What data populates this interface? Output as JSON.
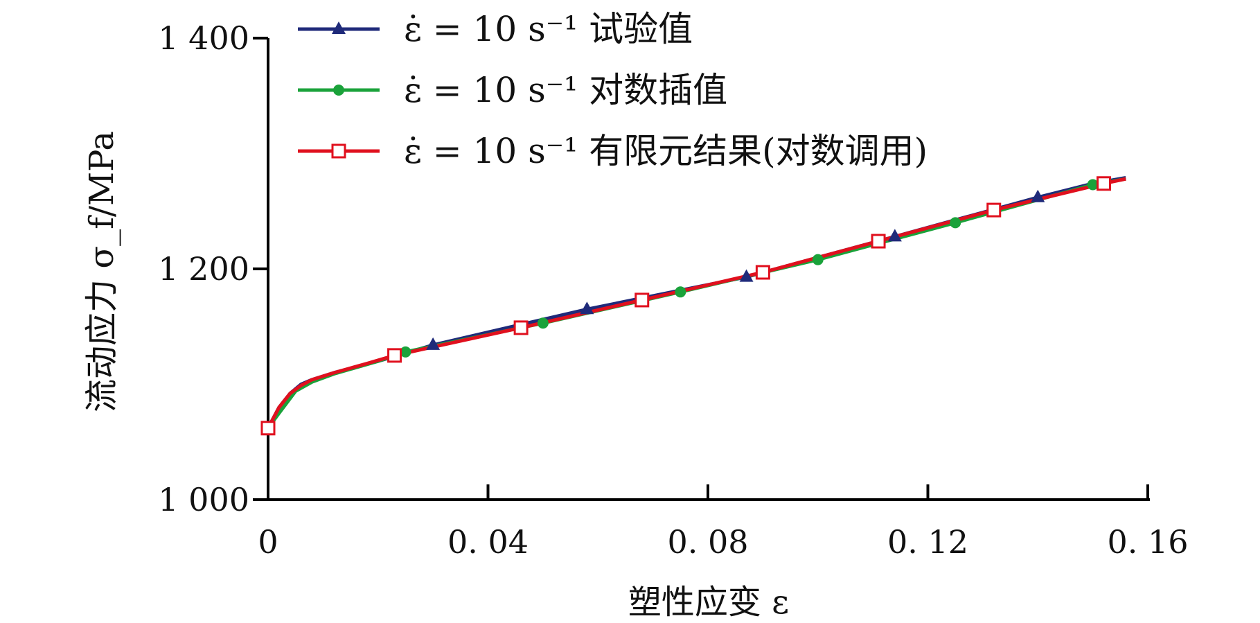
{
  "chart_data": {
    "type": "line",
    "title": "",
    "xlabel": "塑性应变 ε",
    "ylabel": "流动应力 σ_f/MPa",
    "xlim": [
      0,
      0.16
    ],
    "ylim": [
      1000,
      1400
    ],
    "x_ticks": [
      0,
      0.04,
      0.08,
      0.12,
      0.16
    ],
    "x_tick_labels": [
      "0",
      "0. 04",
      "0. 08",
      "0. 12",
      "0. 16"
    ],
    "y_ticks": [
      1000,
      1200,
      1400
    ],
    "y_tick_labels": [
      "1 000",
      "1 200",
      "1 400"
    ],
    "grid": false,
    "legend_position": "top-left",
    "series": [
      {
        "name": "ε̇ = 10 s⁻¹ 试验值",
        "color": "#1f2a7a",
        "marker": "triangle",
        "x": [
          0,
          0.002,
          0.004,
          0.006,
          0.008,
          0.012,
          0.02,
          0.03,
          0.058,
          0.087,
          0.114,
          0.14,
          0.15,
          0.156
        ],
        "y": [
          1062,
          1080,
          1092,
          1100,
          1104,
          1110,
          1120,
          1134,
          1165,
          1193,
          1228,
          1262,
          1274,
          1279
        ],
        "marker_x": [
          0.03,
          0.058,
          0.087,
          0.114,
          0.14
        ],
        "marker_y": [
          1134,
          1165,
          1193,
          1228,
          1262
        ]
      },
      {
        "name": "ε̇ = 10 s⁻¹ 对数插值",
        "color": "#1aa23a",
        "marker": "circle",
        "x": [
          0,
          0.002,
          0.005,
          0.008,
          0.012,
          0.02,
          0.025,
          0.05,
          0.075,
          0.1,
          0.125,
          0.15,
          0.156
        ],
        "y": [
          1062,
          1075,
          1094,
          1102,
          1109,
          1120,
          1128,
          1153,
          1180,
          1208,
          1240,
          1273,
          1278
        ],
        "marker_x": [
          0.025,
          0.05,
          0.075,
          0.1,
          0.125,
          0.15
        ],
        "marker_y": [
          1128,
          1153,
          1180,
          1208,
          1240,
          1273
        ]
      },
      {
        "name": "ε̇ = 10 s⁻¹ 有限元结果(对数调用)",
        "color": "#e0101e",
        "marker": "square-open",
        "x": [
          0,
          0.002,
          0.004,
          0.006,
          0.008,
          0.012,
          0.018,
          0.023,
          0.046,
          0.068,
          0.09,
          0.111,
          0.132,
          0.152,
          0.156
        ],
        "y": [
          1062,
          1080,
          1092,
          1099,
          1104,
          1110,
          1118,
          1125,
          1149,
          1173,
          1197,
          1224,
          1251,
          1274,
          1278
        ],
        "marker_x": [
          0,
          0.023,
          0.046,
          0.068,
          0.09,
          0.111,
          0.132,
          0.152
        ],
        "marker_y": [
          1062,
          1125,
          1149,
          1173,
          1197,
          1224,
          1251,
          1274
        ]
      }
    ]
  }
}
